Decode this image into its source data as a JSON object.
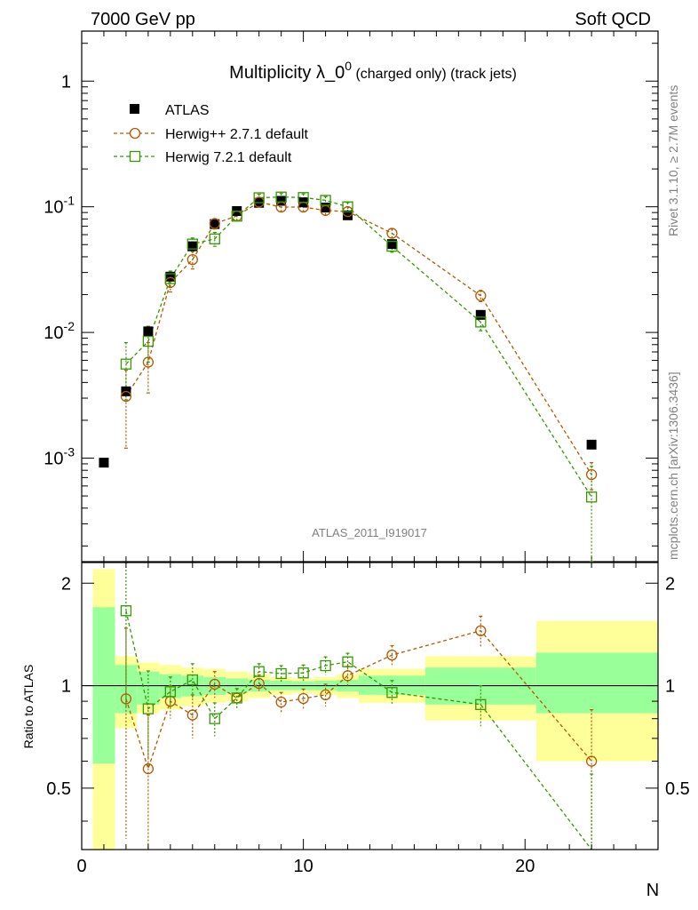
{
  "header": {
    "left": "7000 GeV pp",
    "right": "Soft QCD"
  },
  "side": {
    "rivet": "Rivet 3.1.10, ≥ 2.7M events",
    "mcplots": "mcplots.cern.ch [arXiv:1306.3436]"
  },
  "chart_data": {
    "type": "scatter",
    "title": "Multiplicity λ_0⁰ (charged only) (track jets)",
    "title_main": "Multiplicity λ_0",
    "title_sup": "0",
    "title_tail": " (charged only) (track jets)",
    "analysis_label": "ATLAS_2011_I919017",
    "xlabel": "N",
    "ylabel_ratio": "Ratio to ATLAS",
    "xlim": [
      0,
      26
    ],
    "ylim": [
      0.00015,
      2.5
    ],
    "yscale": "log",
    "ratio_ylim": [
      0.33,
      2.3
    ],
    "ratio_ylim_note": "ratio axis is logarithmic",
    "x_ticks": [
      "0",
      "10",
      "20"
    ],
    "y_ticks": [
      "10^-3",
      "10^-2",
      "10^-1",
      "1"
    ],
    "ratio_ticks": [
      "0.5",
      "1",
      "2"
    ],
    "legend_position": "top-left",
    "colors": {
      "data": "#000000",
      "herwigpp": "#b35900",
      "herwig7": "#339900",
      "band_inner": "#99ff99",
      "band_outer": "#ffff99"
    },
    "series": [
      {
        "name": "ATLAS",
        "marker": "filled-square",
        "x": [
          1,
          2,
          3,
          4,
          5,
          6,
          7,
          8,
          9,
          10,
          11,
          12,
          14,
          18,
          23
        ],
        "y": [
          0.00092,
          0.0034,
          0.0102,
          0.0278,
          0.0485,
          0.0728,
          0.0925,
          0.1075,
          0.1115,
          0.1085,
          0.0985,
          0.0855,
          0.0505,
          0.0138,
          0.00128
        ]
      },
      {
        "name": "Herwig++ 2.7.1 default",
        "marker": "open-circle",
        "x": [
          2,
          3,
          4,
          5,
          6,
          7,
          8,
          9,
          10,
          11,
          12,
          14,
          18,
          23
        ],
        "y": [
          0.0031,
          0.0058,
          0.025,
          0.038,
          0.0735,
          0.0845,
          0.109,
          0.0995,
          0.0995,
          0.0935,
          0.0915,
          0.0615,
          0.0196,
          0.00074
        ],
        "y_err_low": [
          0.0019,
          0.0025,
          0.004,
          0.006,
          0.007,
          0.007,
          0.008,
          0.008,
          0.008,
          0.008,
          0.008,
          0.005,
          0.002,
          0.00018
        ],
        "y_err_high": [
          0.0019,
          0.0025,
          0.004,
          0.006,
          0.007,
          0.007,
          0.008,
          0.008,
          0.008,
          0.008,
          0.008,
          0.005,
          0.002,
          0.00018
        ]
      },
      {
        "name": "Herwig 7.2.1 default",
        "marker": "open-square",
        "x": [
          2,
          3,
          4,
          5,
          6,
          7,
          8,
          9,
          10,
          11,
          12,
          14,
          18,
          23
        ],
        "y": [
          0.0056,
          0.0085,
          0.0268,
          0.0505,
          0.0555,
          0.0842,
          0.118,
          0.1195,
          0.1185,
          0.1125,
          0.1,
          0.0485,
          0.0121,
          0.00049
        ],
        "y_err_low": [
          0.0027,
          0.0027,
          0.004,
          0.006,
          0.007,
          0.007,
          0.008,
          0.008,
          0.008,
          0.008,
          0.008,
          0.005,
          0.0018,
          0.00037
        ],
        "y_err_high": [
          0.0027,
          0.0027,
          0.004,
          0.006,
          0.007,
          0.007,
          0.008,
          0.008,
          0.008,
          0.008,
          0.008,
          0.005,
          0.0018,
          0.00037
        ]
      }
    ],
    "ratio_series": [
      {
        "name": "Herwig++ 2.7.1 default",
        "x": [
          2,
          3,
          4,
          5,
          6,
          7,
          8,
          9,
          10,
          11,
          12,
          14,
          18,
          23
        ],
        "y": [
          0.915,
          0.57,
          0.9,
          0.82,
          1.01,
          0.92,
          1.015,
          0.895,
          0.917,
          0.94,
          1.07,
          1.23,
          1.45,
          0.6
        ],
        "y_err": [
          0.56,
          0.25,
          0.1,
          0.12,
          0.09,
          0.06,
          0.06,
          0.06,
          0.06,
          0.07,
          0.07,
          0.08,
          0.15,
          0.25
        ]
      },
      {
        "name": "Herwig 7.2.1 default",
        "x": [
          2,
          3,
          4,
          5,
          6,
          7,
          8,
          9,
          10,
          11,
          12,
          14,
          18,
          23
        ],
        "y": [
          1.66,
          0.855,
          0.96,
          1.04,
          0.8,
          0.92,
          1.1,
          1.085,
          1.09,
          1.145,
          1.175,
          0.955,
          0.88,
          0.3
        ],
        "y_err": [
          0.8,
          0.25,
          0.1,
          0.12,
          0.09,
          0.06,
          0.06,
          0.06,
          0.06,
          0.07,
          0.07,
          0.08,
          0.12,
          0.25
        ]
      }
    ],
    "ratio_bands": [
      {
        "x_low": 0.5,
        "x_high": 1.5,
        "inner": [
          0.59,
          1.7
        ],
        "outer": [
          0.33,
          2.2
        ]
      },
      {
        "x_low": 1.5,
        "x_high": 2.5,
        "inner": [
          0.83,
          1.15
        ],
        "outer": [
          0.75,
          1.22
        ]
      },
      {
        "x_low": 2.5,
        "x_high": 3.5,
        "inner": [
          0.88,
          1.1
        ],
        "outer": [
          0.83,
          1.17
        ]
      },
      {
        "x_low": 3.5,
        "x_high": 4.5,
        "inner": [
          0.92,
          1.08
        ],
        "outer": [
          0.85,
          1.15
        ]
      },
      {
        "x_low": 4.5,
        "x_high": 5.5,
        "inner": [
          0.93,
          1.07
        ],
        "outer": [
          0.87,
          1.13
        ]
      },
      {
        "x_low": 5.5,
        "x_high": 6.5,
        "inner": [
          0.94,
          1.06
        ],
        "outer": [
          0.89,
          1.12
        ]
      },
      {
        "x_low": 6.5,
        "x_high": 7.5,
        "inner": [
          0.95,
          1.05
        ],
        "outer": [
          0.9,
          1.1
        ]
      },
      {
        "x_low": 7.5,
        "x_high": 8.5,
        "inner": [
          0.96,
          1.04
        ],
        "outer": [
          0.92,
          1.08
        ]
      },
      {
        "x_low": 8.5,
        "x_high": 9.5,
        "inner": [
          0.97,
          1.035
        ],
        "outer": [
          0.94,
          1.06
        ]
      },
      {
        "x_low": 9.5,
        "x_high": 10.5,
        "inner": [
          0.97,
          1.03
        ],
        "outer": [
          0.95,
          1.05
        ]
      },
      {
        "x_low": 10.5,
        "x_high": 11.5,
        "inner": [
          0.97,
          1.035
        ],
        "outer": [
          0.94,
          1.06
        ]
      },
      {
        "x_low": 11.5,
        "x_high": 12.5,
        "inner": [
          0.96,
          1.04
        ],
        "outer": [
          0.92,
          1.08
        ]
      },
      {
        "x_low": 12.5,
        "x_high": 15.5,
        "inner": [
          0.94,
          1.07
        ],
        "outer": [
          0.89,
          1.12
        ]
      },
      {
        "x_low": 15.5,
        "x_high": 20.5,
        "inner": [
          0.88,
          1.13
        ],
        "outer": [
          0.79,
          1.22
        ]
      },
      {
        "x_low": 20.5,
        "x_high": 26,
        "inner": [
          0.83,
          1.25
        ],
        "outer": [
          0.6,
          1.55
        ]
      }
    ]
  }
}
